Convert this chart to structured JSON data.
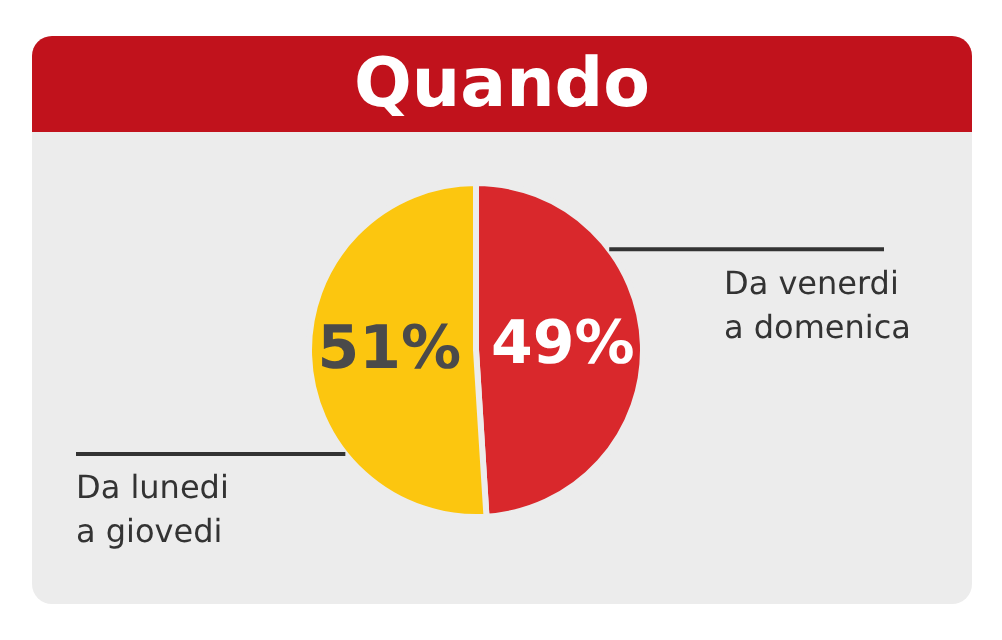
{
  "chart_data": {
    "type": "pie",
    "title": "Quando",
    "categories": [
      "Da venerdi\na domenica",
      "Da lunedi\na giovedi"
    ],
    "values": [
      49,
      51
    ],
    "colors": [
      "#d9282c",
      "#fcc60f"
    ],
    "value_labels": [
      "49%",
      "51%"
    ],
    "legend": false
  }
}
